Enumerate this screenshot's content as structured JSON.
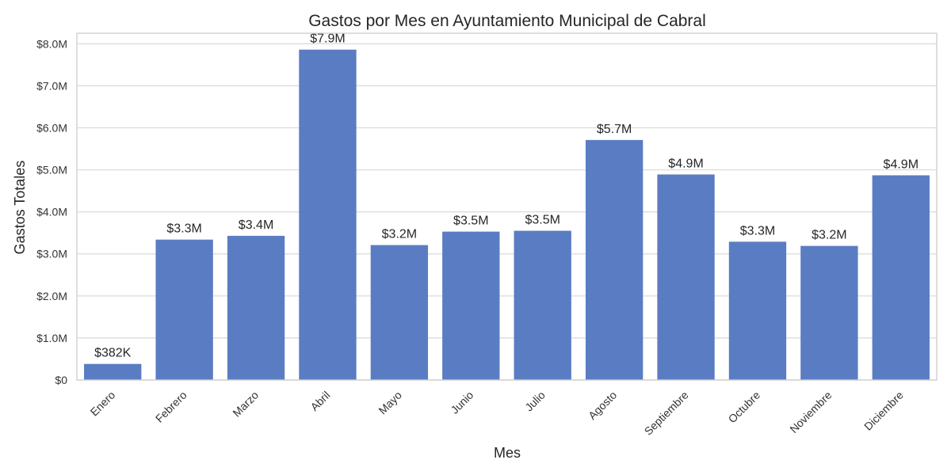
{
  "chart_data": {
    "type": "bar",
    "title": "Gastos por Mes en Ayuntamiento Municipal de Cabral",
    "xlabel": "Mes",
    "ylabel": "Gastos Totales",
    "categories": [
      "Enero",
      "Febrero",
      "Marzo",
      "Abril",
      "Mayo",
      "Junio",
      "Julio",
      "Agosto",
      "Septiembre",
      "Octubre",
      "Noviembre",
      "Diciembre"
    ],
    "values": [
      382000,
      3340000,
      3430000,
      7860000,
      3210000,
      3530000,
      3550000,
      5710000,
      4890000,
      3290000,
      3190000,
      4870000
    ],
    "value_labels": [
      "$382K",
      "$3.3M",
      "$3.4M",
      "$7.9M",
      "$3.2M",
      "$3.5M",
      "$3.5M",
      "$5.7M",
      "$4.9M",
      "$3.3M",
      "$3.2M",
      "$4.9M"
    ],
    "ylim": [
      0,
      8250000
    ],
    "yticks": [
      0,
      1000000,
      2000000,
      3000000,
      4000000,
      5000000,
      6000000,
      7000000,
      8000000
    ],
    "ytick_labels": [
      "$0",
      "$1.0M",
      "$2.0M",
      "$3.0M",
      "$4.0M",
      "$5.0M",
      "$6.0M",
      "$7.0M",
      "$8.0M"
    ],
    "grid": true,
    "bar_color": "#5a7cc2",
    "grid_color": "#d9d9d9",
    "frame_color": "#cfcfcf"
  }
}
